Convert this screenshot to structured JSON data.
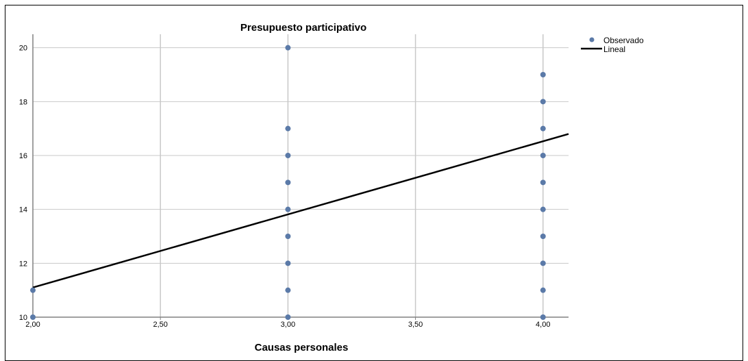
{
  "chart_data": {
    "type": "scatter",
    "title": "Presupuesto participativo",
    "xlabel": "Causas personales",
    "ylabel": "",
    "xlim": [
      2.0,
      4.1
    ],
    "ylim": [
      10,
      20.5
    ],
    "xticks": [
      {
        "value": 2.0,
        "label": "2,00"
      },
      {
        "value": 2.5,
        "label": "2,50"
      },
      {
        "value": 3.0,
        "label": "3,00"
      },
      {
        "value": 3.5,
        "label": "3,50"
      },
      {
        "value": 4.0,
        "label": "4,00"
      }
    ],
    "yticks": [
      {
        "value": 10,
        "label": "10"
      },
      {
        "value": 12,
        "label": "12"
      },
      {
        "value": 14,
        "label": "14"
      },
      {
        "value": 16,
        "label": "16"
      },
      {
        "value": 18,
        "label": "18"
      },
      {
        "value": 20,
        "label": "20"
      }
    ],
    "grid": true,
    "legend_position": "top-right",
    "series": [
      {
        "name": "Observado",
        "type": "scatter",
        "color": "#5b7aa8",
        "points": [
          {
            "x": 2.0,
            "y": 10
          },
          {
            "x": 2.0,
            "y": 11
          },
          {
            "x": 3.0,
            "y": 10
          },
          {
            "x": 3.0,
            "y": 11
          },
          {
            "x": 3.0,
            "y": 12
          },
          {
            "x": 3.0,
            "y": 13
          },
          {
            "x": 3.0,
            "y": 14
          },
          {
            "x": 3.0,
            "y": 15
          },
          {
            "x": 3.0,
            "y": 16
          },
          {
            "x": 3.0,
            "y": 17
          },
          {
            "x": 3.0,
            "y": 20
          },
          {
            "x": 4.0,
            "y": 10
          },
          {
            "x": 4.0,
            "y": 11
          },
          {
            "x": 4.0,
            "y": 12
          },
          {
            "x": 4.0,
            "y": 13
          },
          {
            "x": 4.0,
            "y": 14
          },
          {
            "x": 4.0,
            "y": 15
          },
          {
            "x": 4.0,
            "y": 16
          },
          {
            "x": 4.0,
            "y": 17
          },
          {
            "x": 4.0,
            "y": 18
          },
          {
            "x": 4.0,
            "y": 19
          }
        ]
      },
      {
        "name": "Lineal",
        "type": "line",
        "color": "#000000",
        "points": [
          {
            "x": 2.0,
            "y": 11.1
          },
          {
            "x": 4.1,
            "y": 16.8
          }
        ]
      }
    ]
  }
}
